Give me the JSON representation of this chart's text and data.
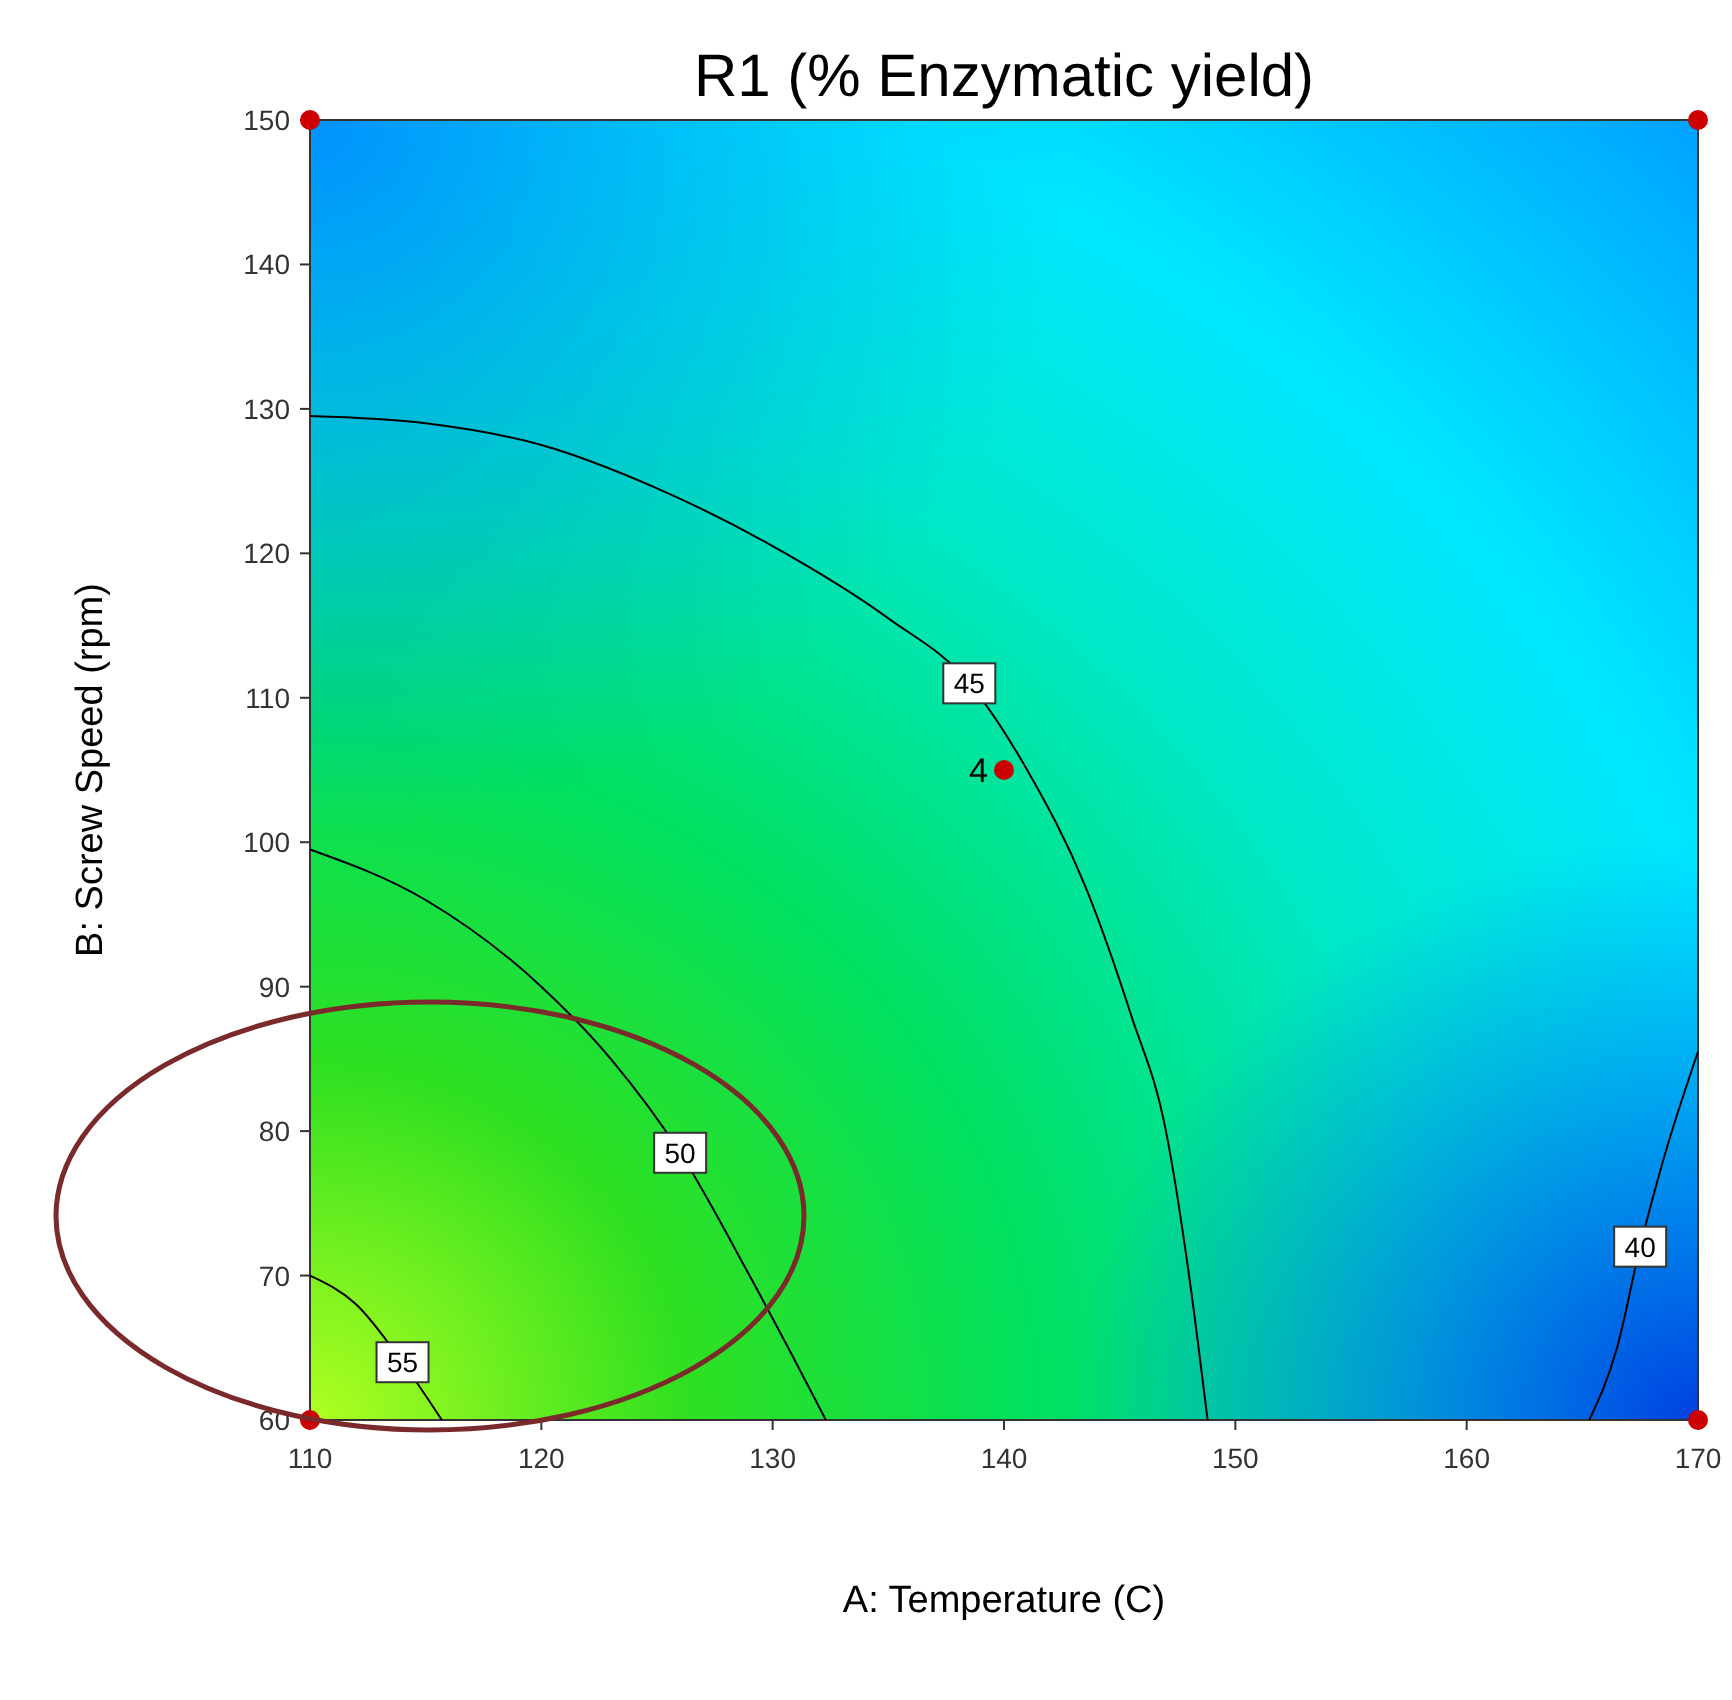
{
  "chart_data": {
    "type": "line",
    "title": "R1 (% Enzymatic yield)",
    "xlabel": "A: Temperature (C)",
    "ylabel": "B: Screw Speed (rpm)",
    "xlim": [
      110,
      170
    ],
    "xticks": [
      110,
      120,
      130,
      140,
      150,
      160,
      170
    ],
    "ylim": [
      60,
      150
    ],
    "yticks": [
      60,
      70,
      80,
      90,
      100,
      110,
      120,
      130,
      140,
      150
    ],
    "grid": false,
    "series": [
      {
        "name": "45",
        "color": "#000000",
        "marker": "none",
        "x": [
          110,
          115,
          120,
          125,
          130,
          135,
          138.5,
          141,
          143.5,
          145.5,
          147,
          148,
          148.8
        ],
        "values": [
          129.5,
          129,
          127.5,
          124.5,
          120.5,
          115.5,
          111,
          105,
          97,
          88,
          80,
          70,
          60
        ]
      },
      {
        "name": "50",
        "color": "#000000",
        "marker": "none",
        "x": [
          110,
          115,
          120,
          123,
          126,
          129,
          131,
          132.3
        ],
        "values": [
          99.5,
          96,
          90,
          85,
          78.5,
          70,
          64,
          60
        ]
      },
      {
        "name": "55",
        "color": "#000000",
        "marker": "none",
        "x": [
          110,
          112,
          114,
          115.7
        ],
        "values": [
          70,
          68,
          64,
          60
        ]
      },
      {
        "name": "40",
        "color": "#000000",
        "marker": "none",
        "x": [
          165.3,
          166.5,
          167.5,
          168.5,
          170
        ],
        "values": [
          60,
          65,
          72,
          78,
          85.5
        ]
      },
      {
        "type": "scatter",
        "color": "#cc0000",
        "marker": "circle",
        "x": [
          110,
          110,
          170,
          170,
          140
        ],
        "values": [
          60,
          150,
          60,
          150,
          105
        ]
      }
    ],
    "annotations": [
      {
        "text": "4",
        "x": 140,
        "y": 105
      }
    ]
  }
}
